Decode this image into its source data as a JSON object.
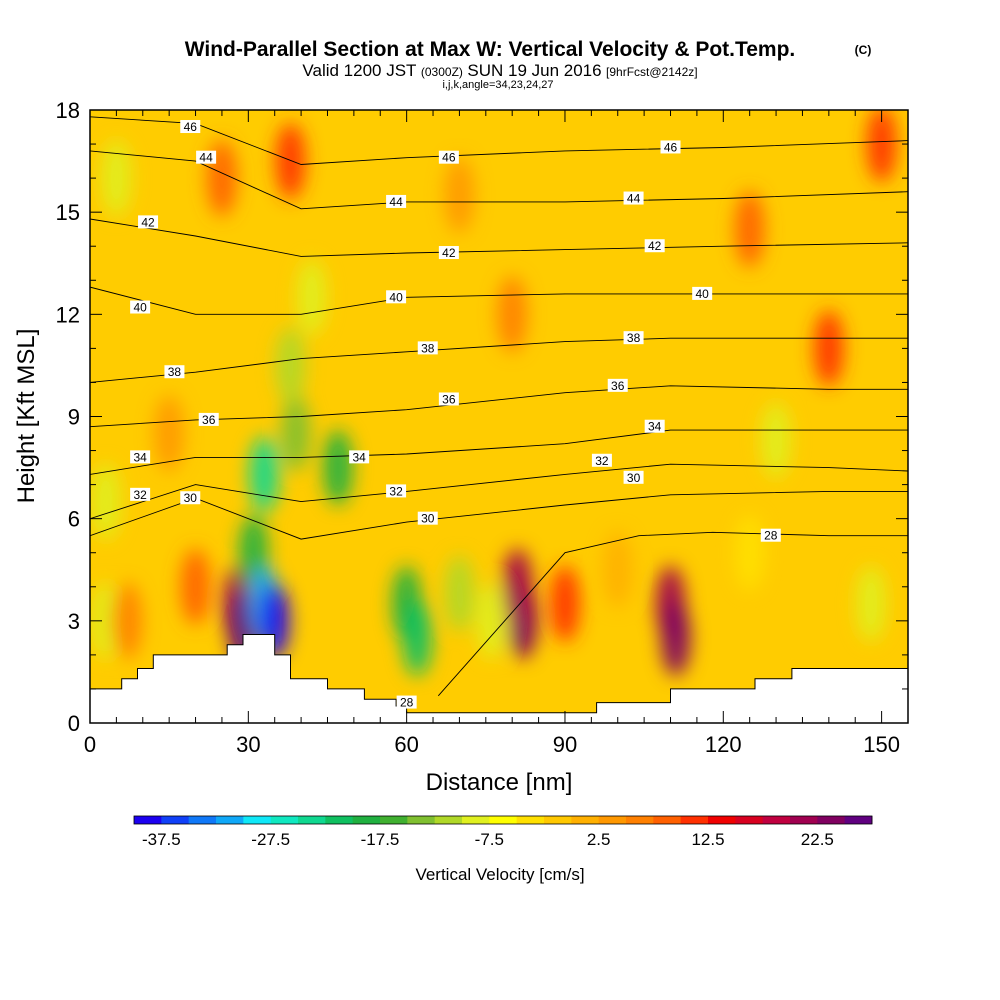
{
  "chart_data": {
    "type": "heatmap",
    "title": "Wind-Parallel Section at Max W: Vertical Velocity & Pot.Temp.",
    "title_mark": "(C)",
    "subtitle_parts": [
      "Valid 1200 JST",
      "(0300Z)",
      "SUN 19 Jun 2016",
      "[9hrFcst@2142z]"
    ],
    "subtitle2": "i,j,k,angle=34,23,24,27",
    "xlabel": "Distance [nm]",
    "ylabel": "Height [Kft MSL]",
    "xlim": [
      0,
      155
    ],
    "ylim": [
      0,
      18
    ],
    "xticks": [
      0,
      30,
      60,
      90,
      120,
      150
    ],
    "yticks": [
      0,
      3,
      6,
      9,
      12,
      15,
      18
    ],
    "grid": false,
    "colorbar": {
      "label": "Vertical Velocity [cm/s]",
      "range": [
        -40,
        27.5
      ],
      "tick_labels": [
        "-37.5",
        "-27.5",
        "-17.5",
        "-7.5",
        "2.5",
        "12.5",
        "22.5"
      ],
      "tick_values": [
        -37.5,
        -27.5,
        -17.5,
        -7.5,
        2.5,
        12.5,
        22.5
      ],
      "colors": [
        "#1c00f0",
        "#1040f8",
        "#1078f8",
        "#10a8f8",
        "#10e8f8",
        "#10e8c0",
        "#10d890",
        "#10c060",
        "#20b040",
        "#40b030",
        "#80c030",
        "#b0d828",
        "#e0f020",
        "#ffff00",
        "#ffe000",
        "#ffc800",
        "#ffb000",
        "#ff9800",
        "#ff8000",
        "#ff6000",
        "#ff3000",
        "#f00000",
        "#d80020",
        "#c00040",
        "#a00050",
        "#800060",
        "#600080"
      ]
    },
    "vertical_velocity_cells": [
      {
        "x": 3,
        "z": 6.5,
        "w": -10
      },
      {
        "x": 3,
        "z": 3,
        "w": -9
      },
      {
        "x": 7,
        "z": 3,
        "w": 6
      },
      {
        "x": 28,
        "z": 3.5,
        "w": 20
      },
      {
        "x": 29,
        "z": 2.8,
        "w": 27
      },
      {
        "x": 31,
        "z": 5.0,
        "w": -20
      },
      {
        "x": 33,
        "z": 3.5,
        "w": -32
      },
      {
        "x": 35,
        "z": 3.0,
        "w": -38
      },
      {
        "x": 33,
        "z": 7.3,
        "w": -24
      },
      {
        "x": 39,
        "z": 8.5,
        "w": -14
      },
      {
        "x": 47,
        "z": 7.5,
        "w": -18
      },
      {
        "x": 42,
        "z": 12.5,
        "w": -10
      },
      {
        "x": 38,
        "z": 10.5,
        "w": -12
      },
      {
        "x": 60,
        "z": 3.5,
        "w": -18
      },
      {
        "x": 62,
        "z": 2.5,
        "w": -22
      },
      {
        "x": 70,
        "z": 3.8,
        "w": -12
      },
      {
        "x": 76,
        "z": 3.0,
        "w": -8
      },
      {
        "x": 82,
        "z": 3.0,
        "w": 24
      },
      {
        "x": 81,
        "z": 4.0,
        "w": 20
      },
      {
        "x": 90,
        "z": 3.5,
        "w": 10
      },
      {
        "x": 110,
        "z": 3.5,
        "w": 22
      },
      {
        "x": 111,
        "z": 2.5,
        "w": 24
      },
      {
        "x": 100,
        "z": 4.5,
        "w": 1
      },
      {
        "x": 130,
        "z": 8.3,
        "w": -8
      },
      {
        "x": 148,
        "z": 3.5,
        "w": -8
      },
      {
        "x": 125,
        "z": 5.0,
        "w": -3
      },
      {
        "x": 80,
        "z": 12.0,
        "w": 6
      },
      {
        "x": 125,
        "z": 14.5,
        "w": 8
      },
      {
        "x": 140,
        "z": 11.0,
        "w": 10
      },
      {
        "x": 38,
        "z": 16.5,
        "w": 12
      },
      {
        "x": 25,
        "z": 16.0,
        "w": 8
      },
      {
        "x": 70,
        "z": 15.5,
        "w": 4
      },
      {
        "x": 150,
        "z": 17.0,
        "w": 10
      },
      {
        "x": 5,
        "z": 16.0,
        "w": -8
      },
      {
        "x": 15,
        "z": 8.5,
        "w": 4
      },
      {
        "x": 20,
        "z": 4.0,
        "w": 8
      }
    ],
    "potential_temperature_contours": [
      {
        "level": "28",
        "points": [
          [
            66,
            0.8
          ],
          [
            90,
            5.0
          ],
          [
            104,
            5.5
          ],
          [
            118,
            5.6
          ],
          [
            140,
            5.5
          ],
          [
            155,
            5.5
          ]
        ]
      },
      {
        "level": "30",
        "points": [
          [
            0,
            5.5
          ],
          [
            20,
            6.6
          ],
          [
            40,
            5.4
          ],
          [
            60,
            5.9
          ],
          [
            90,
            6.4
          ],
          [
            110,
            6.7
          ],
          [
            140,
            6.8
          ],
          [
            155,
            6.8
          ]
        ]
      },
      {
        "level": "32",
        "points": [
          [
            0,
            6.0
          ],
          [
            20,
            7.0
          ],
          [
            40,
            6.5
          ],
          [
            60,
            6.8
          ],
          [
            90,
            7.3
          ],
          [
            110,
            7.6
          ],
          [
            140,
            7.5
          ],
          [
            155,
            7.4
          ]
        ]
      },
      {
        "level": "34",
        "points": [
          [
            0,
            7.3
          ],
          [
            20,
            7.8
          ],
          [
            40,
            7.8
          ],
          [
            60,
            7.9
          ],
          [
            90,
            8.2
          ],
          [
            110,
            8.6
          ],
          [
            140,
            8.6
          ],
          [
            155,
            8.6
          ]
        ]
      },
      {
        "level": "36",
        "points": [
          [
            0,
            8.7
          ],
          [
            20,
            8.9
          ],
          [
            40,
            9.0
          ],
          [
            60,
            9.2
          ],
          [
            90,
            9.7
          ],
          [
            110,
            9.9
          ],
          [
            140,
            9.8
          ],
          [
            155,
            9.8
          ]
        ]
      },
      {
        "level": "38",
        "points": [
          [
            0,
            10.0
          ],
          [
            20,
            10.3
          ],
          [
            40,
            10.7
          ],
          [
            60,
            10.9
          ],
          [
            90,
            11.2
          ],
          [
            110,
            11.3
          ],
          [
            140,
            11.3
          ],
          [
            155,
            11.3
          ]
        ]
      },
      {
        "level": "40",
        "points": [
          [
            0,
            12.8
          ],
          [
            20,
            12.0
          ],
          [
            40,
            12.0
          ],
          [
            60,
            12.5
          ],
          [
            90,
            12.6
          ],
          [
            120,
            12.6
          ],
          [
            155,
            12.6
          ]
        ]
      },
      {
        "level": "42",
        "points": [
          [
            0,
            14.8
          ],
          [
            20,
            14.3
          ],
          [
            40,
            13.7
          ],
          [
            60,
            13.8
          ],
          [
            90,
            13.9
          ],
          [
            120,
            14.0
          ],
          [
            155,
            14.1
          ]
        ]
      },
      {
        "level": "44",
        "points": [
          [
            0,
            16.8
          ],
          [
            20,
            16.5
          ],
          [
            40,
            15.1
          ],
          [
            60,
            15.3
          ],
          [
            90,
            15.3
          ],
          [
            120,
            15.4
          ],
          [
            155,
            15.6
          ]
        ]
      },
      {
        "level": "46",
        "points": [
          [
            0,
            17.8
          ],
          [
            20,
            17.6
          ],
          [
            40,
            16.4
          ],
          [
            60,
            16.6
          ],
          [
            90,
            16.8
          ],
          [
            120,
            16.9
          ],
          [
            155,
            17.1
          ]
        ]
      }
    ],
    "contour_labels": [
      {
        "text": "46",
        "x": 19,
        "y": 17.5
      },
      {
        "text": "44",
        "x": 22,
        "y": 16.6
      },
      {
        "text": "42",
        "x": 11,
        "y": 14.7
      },
      {
        "text": "40",
        "x": 9.5,
        "y": 12.2
      },
      {
        "text": "38",
        "x": 16,
        "y": 10.3
      },
      {
        "text": "36",
        "x": 22.5,
        "y": 8.9
      },
      {
        "text": "34",
        "x": 9.5,
        "y": 7.8
      },
      {
        "text": "32",
        "x": 9.5,
        "y": 6.7
      },
      {
        "text": "30",
        "x": 19,
        "y": 6.6
      },
      {
        "text": "46",
        "x": 68,
        "y": 16.6
      },
      {
        "text": "44",
        "x": 58,
        "y": 15.3
      },
      {
        "text": "42",
        "x": 68,
        "y": 13.8
      },
      {
        "text": "40",
        "x": 58,
        "y": 12.5
      },
      {
        "text": "38",
        "x": 64,
        "y": 11.0
      },
      {
        "text": "36",
        "x": 68,
        "y": 9.5
      },
      {
        "text": "34",
        "x": 51,
        "y": 7.8
      },
      {
        "text": "32",
        "x": 58,
        "y": 6.8
      },
      {
        "text": "30",
        "x": 64,
        "y": 6.0
      },
      {
        "text": "46",
        "x": 110,
        "y": 16.9
      },
      {
        "text": "44",
        "x": 103,
        "y": 15.4
      },
      {
        "text": "42",
        "x": 107,
        "y": 14.0
      },
      {
        "text": "40",
        "x": 116,
        "y": 12.6
      },
      {
        "text": "38",
        "x": 103,
        "y": 11.3
      },
      {
        "text": "36",
        "x": 100,
        "y": 9.9
      },
      {
        "text": "34",
        "x": 107,
        "y": 8.7
      },
      {
        "text": "32",
        "x": 97,
        "y": 7.7
      },
      {
        "text": "30",
        "x": 103,
        "y": 7.2
      },
      {
        "text": "28",
        "x": 129,
        "y": 5.5
      },
      {
        "text": "28",
        "x": 60,
        "y": 0.6
      }
    ],
    "terrain": [
      [
        0,
        1.0
      ],
      [
        6,
        1.0
      ],
      [
        6,
        1.3
      ],
      [
        9,
        1.3
      ],
      [
        9,
        1.6
      ],
      [
        12,
        1.6
      ],
      [
        12,
        2.0
      ],
      [
        26,
        2.0
      ],
      [
        26,
        2.3
      ],
      [
        29,
        2.3
      ],
      [
        29,
        2.6
      ],
      [
        35,
        2.6
      ],
      [
        35,
        2.0
      ],
      [
        38,
        2.0
      ],
      [
        38,
        1.3
      ],
      [
        45,
        1.3
      ],
      [
        45,
        1.0
      ],
      [
        52,
        1.0
      ],
      [
        52,
        0.7
      ],
      [
        58,
        0.7
      ],
      [
        58,
        0.5
      ],
      [
        60,
        0.5
      ],
      [
        60,
        0.3
      ],
      [
        96,
        0.3
      ],
      [
        96,
        0.6
      ],
      [
        110,
        0.6
      ],
      [
        110,
        1.0
      ],
      [
        126,
        1.0
      ],
      [
        126,
        1.3
      ],
      [
        133,
        1.3
      ],
      [
        133,
        1.6
      ],
      [
        155,
        1.6
      ]
    ]
  }
}
